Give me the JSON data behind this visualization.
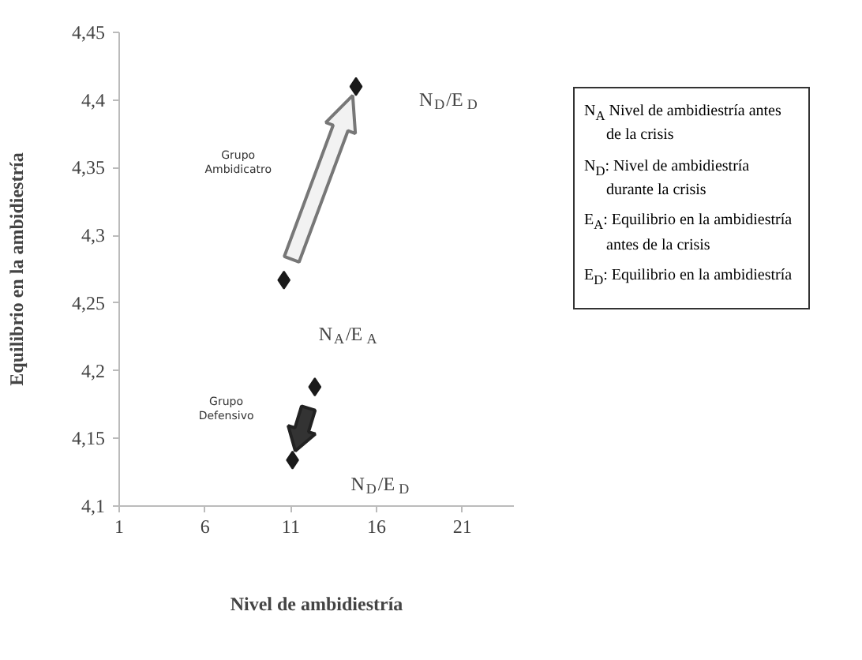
{
  "chart_data": {
    "type": "scatter",
    "xlabel": "Nivel de ambidiestría",
    "ylabel": "Equilibrio en la ambidiestría",
    "xlim": [
      1,
      24
    ],
    "xticks": [
      1,
      6,
      11,
      16,
      21
    ],
    "ylim": [
      4.1,
      4.45
    ],
    "yticks": [
      {
        "value": 4.1,
        "label": "4,1"
      },
      {
        "value": 4.15,
        "label": "4,15"
      },
      {
        "value": 4.2,
        "label": "4,2"
      },
      {
        "value": 4.25,
        "label": "4,25"
      },
      {
        "value": 4.3,
        "label": "4,3"
      },
      {
        "value": 4.35,
        "label": "4,35"
      },
      {
        "value": 4.4,
        "label": "4,4"
      },
      {
        "value": 4.45,
        "label": "4,45"
      }
    ],
    "marker": "diamond",
    "grid": false,
    "series": [
      {
        "color": "#1a1a1a",
        "x": [
          10.6,
          14.8
        ],
        "values": [
          4.267,
          4.41
        ]
      },
      {
        "color": "#1a1a1a",
        "x": [
          12.4,
          11.1
        ],
        "values": [
          4.188,
          4.134
        ]
      }
    ],
    "annotations": [
      "N$_{D}$/E$_{D}$",
      "Grupo Ambidicatro",
      "N$_{A}$/E$_{A}$",
      "Grupo Defensivo",
      "N$_{D}$/E$_{D}$",
      "N$_{A}$ Nivel de ambidiestría antes de la crisis",
      "N$_{D}$: Nivel de ambidiestría durante la crisis",
      "E$_{A}$: Equilibrio en la ambidiestría antes de la crisis",
      "E$_{D}$: Equilibrio en la ambidiestría"
    ]
  }
}
